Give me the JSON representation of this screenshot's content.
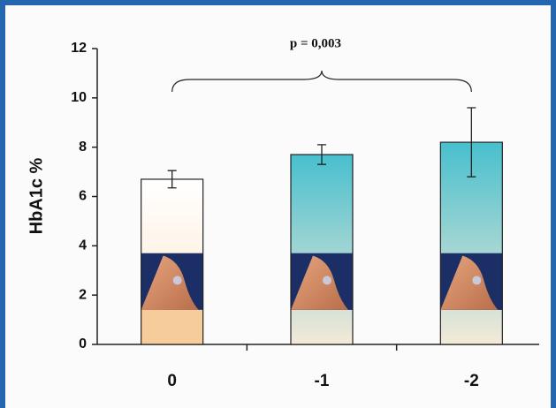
{
  "chart_data": {
    "type": "bar",
    "ylabel": "HbA1c %",
    "annotation": "p = 0,003",
    "categories": [
      "0",
      "-1",
      "-2"
    ],
    "values": [
      6.7,
      7.7,
      8.2
    ],
    "errors": [
      0.35,
      0.4,
      1.4
    ],
    "colors": [
      "#ffffff",
      "#4fc3d1",
      "#4fc3d1"
    ],
    "ylim": [
      0,
      12
    ],
    "yticks": [
      0,
      2,
      4,
      6,
      8,
      10,
      12
    ]
  }
}
